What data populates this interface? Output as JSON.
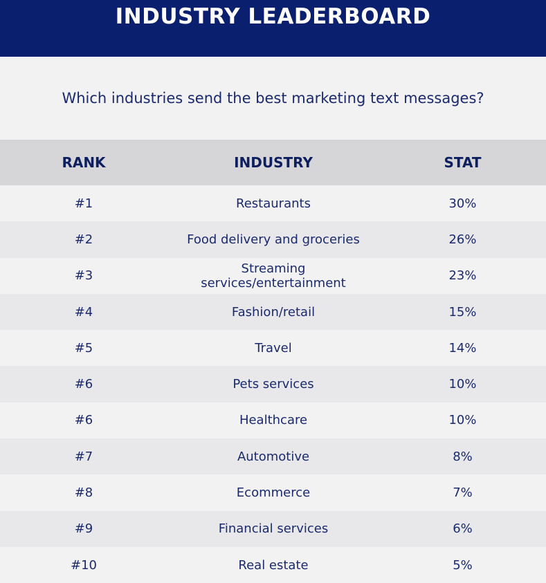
{
  "header": {
    "title": "INDUSTRY LEADERBOARD",
    "subtitle": "Which industries send the best marketing text messages?"
  },
  "table": {
    "columns": [
      "RANK",
      "INDUSTRY",
      "STAT"
    ],
    "rows": [
      {
        "rank": "#1",
        "industry": "Restaurants",
        "stat": "30%"
      },
      {
        "rank": "#2",
        "industry": "Food delivery and groceries",
        "stat": "26%"
      },
      {
        "rank": "#3",
        "industry": "Streaming services/entertainment",
        "stat": "23%"
      },
      {
        "rank": "#4",
        "industry": "Fashion/retail",
        "stat": "15%"
      },
      {
        "rank": "#5",
        "industry": "Travel",
        "stat": "14%"
      },
      {
        "rank": "#6",
        "industry": "Pets services",
        "stat": "10%"
      },
      {
        "rank": "#6",
        "industry": "Healthcare",
        "stat": "10%"
      },
      {
        "rank": "#7",
        "industry": "Automotive",
        "stat": "8%"
      },
      {
        "rank": "#8",
        "industry": "Ecommerce",
        "stat": "7%"
      },
      {
        "rank": "#9",
        "industry": "Financial services",
        "stat": "6%"
      },
      {
        "rank": "#10",
        "industry": "Real estate",
        "stat": "5%"
      }
    ]
  },
  "colors": {
    "banner": "#0a1f6e",
    "text": "#1a2a6c",
    "header_row": "#d6d6d8",
    "row_alt": "#e8e8ea",
    "row_plain": "#f2f2f3"
  }
}
